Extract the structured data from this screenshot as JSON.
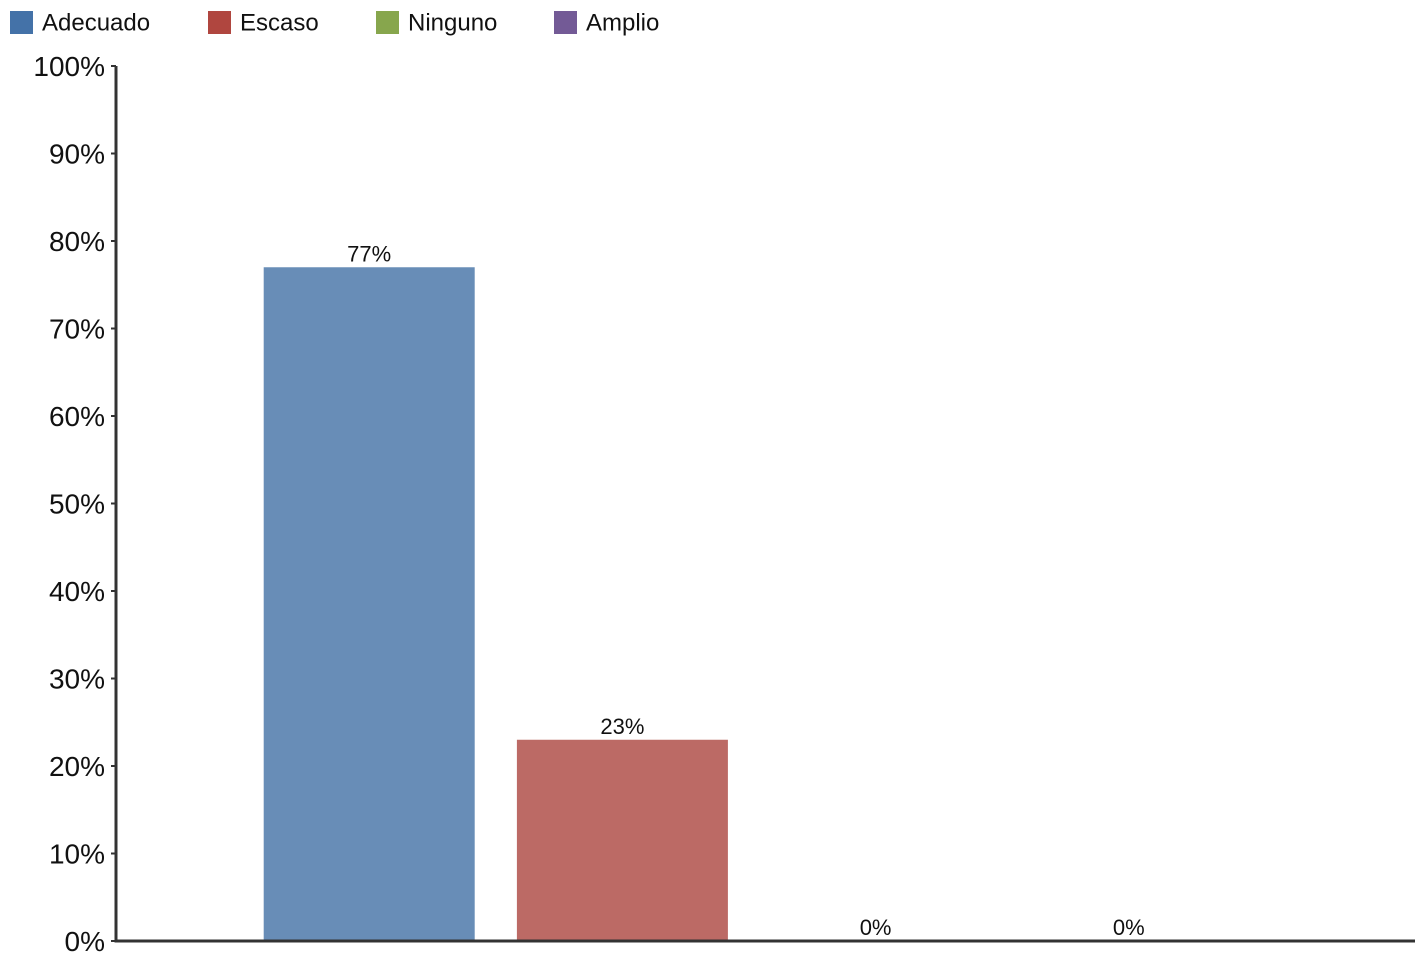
{
  "chart_data": {
    "type": "bar",
    "categories": [
      "Adecuado",
      "Escaso",
      "Ninguno",
      "Amplio"
    ],
    "values": [
      77,
      23,
      0,
      0
    ],
    "value_labels": [
      "77%",
      "23%",
      "0%",
      "0%"
    ],
    "ylim": [
      0,
      100
    ],
    "yticks": [
      0,
      10,
      20,
      30,
      40,
      50,
      60,
      70,
      80,
      90,
      100
    ],
    "ytick_labels": [
      "0%",
      "10%",
      "20%",
      "30%",
      "40%",
      "50%",
      "60%",
      "70%",
      "80%",
      "90%",
      "100%"
    ],
    "legend": {
      "placement": "top-left",
      "entries": [
        "Adecuado",
        "Escaso",
        "Ninguno",
        "Amplio"
      ]
    },
    "colors": {
      "legend": [
        "#4472a8",
        "#b0463f",
        "#87a64d",
        "#735a96"
      ],
      "bars": [
        "#688db7",
        "#bc6a65",
        "#9fb86e",
        "#8d7aaa"
      ],
      "axis": "#333333"
    },
    "grid": false
  }
}
